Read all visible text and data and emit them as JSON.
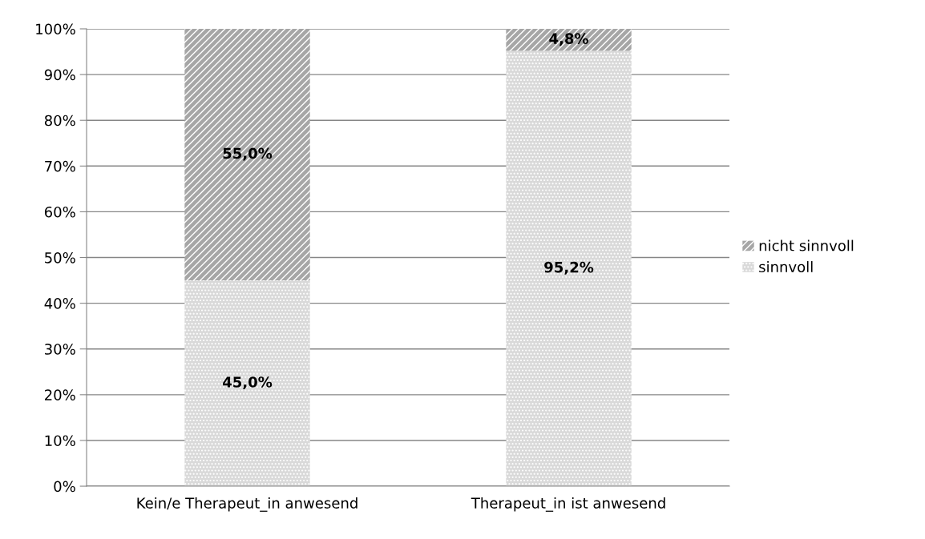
{
  "chart_data": {
    "type": "bar",
    "stacked": true,
    "categories": [
      "Kein/e Therapeut_in anwesend",
      "Therapeut_in ist anwesend"
    ],
    "series": [
      {
        "name": "sinnvoll",
        "color": "#d9d9d9",
        "values": [
          45.0,
          95.2
        ],
        "value_labels": [
          "45,0%",
          "95,2%"
        ]
      },
      {
        "name": "nicht sinnvoll",
        "color": "#a6a6a6",
        "values": [
          55.0,
          4.8
        ],
        "value_labels": [
          "55,0%",
          "4,8%"
        ]
      }
    ],
    "ylim": [
      0,
      100
    ],
    "yticks": [
      {
        "value": 0,
        "label": "0%"
      },
      {
        "value": 10,
        "label": "10%"
      },
      {
        "value": 20,
        "label": "20%"
      },
      {
        "value": 30,
        "label": "30%"
      },
      {
        "value": 40,
        "label": "40%"
      },
      {
        "value": 50,
        "label": "50%"
      },
      {
        "value": 60,
        "label": "60%"
      },
      {
        "value": 70,
        "label": "70%"
      },
      {
        "value": 80,
        "label": "80%"
      },
      {
        "value": 90,
        "label": "90%"
      },
      {
        "value": 100,
        "label": "100%"
      }
    ],
    "grid": "y",
    "legend": "right"
  }
}
